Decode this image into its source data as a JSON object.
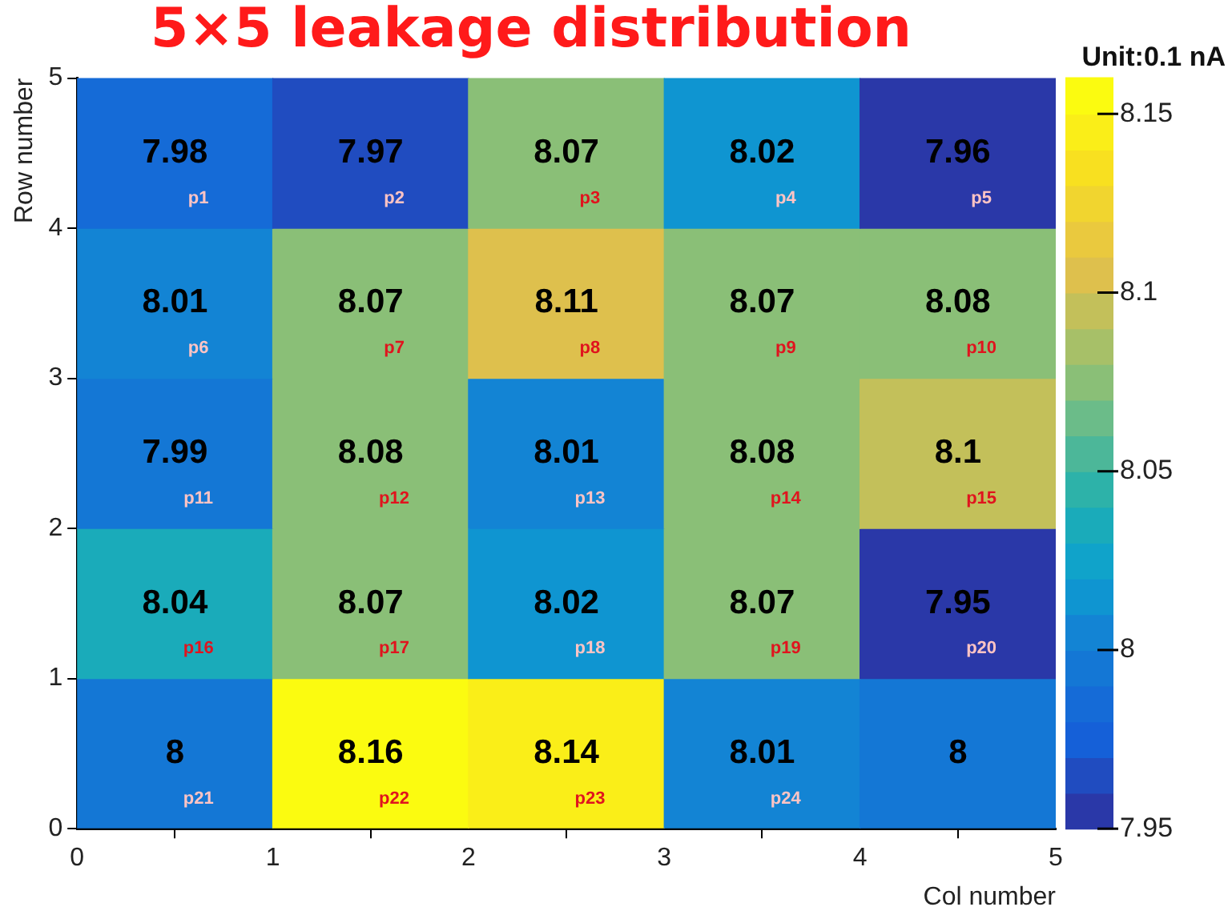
{
  "chart_data": {
    "type": "heatmap",
    "title": "5×5 leakage distribution",
    "xlabel": "Col number",
    "ylabel": "Row number",
    "clabel": "Unit:0.1 nA",
    "xlim": [
      0,
      5
    ],
    "xticks": [
      0,
      1,
      2,
      3,
      4,
      5
    ],
    "ylim": [
      0,
      5
    ],
    "yticks": [
      0,
      1,
      2,
      3,
      4,
      5
    ],
    "cells": [
      [
        7.98,
        7.97,
        8.07,
        8.02,
        7.96
      ],
      [
        8.01,
        8.07,
        8.11,
        8.07,
        8.08
      ],
      [
        7.99,
        8.08,
        8.01,
        8.08,
        8.1
      ],
      [
        8.04,
        8.07,
        8.02,
        8.07,
        7.95
      ],
      [
        8,
        8.16,
        8.14,
        8.01,
        8
      ]
    ],
    "data_labels": true,
    "clim": [
      7.95,
      8.16
    ],
    "cticks": [
      7.95,
      8,
      8.05,
      8.1,
      8.15
    ],
    "annotations": [
      "p1",
      "p2",
      "p3",
      "p4",
      "p5",
      "p6",
      "p7",
      "p8",
      "p9",
      "p10",
      "p11",
      "p12",
      "p13",
      "p14",
      "p15",
      "p16",
      "p17",
      "p18",
      "p19",
      "p20",
      "p21",
      "p22",
      "p23",
      "p24"
    ]
  }
}
